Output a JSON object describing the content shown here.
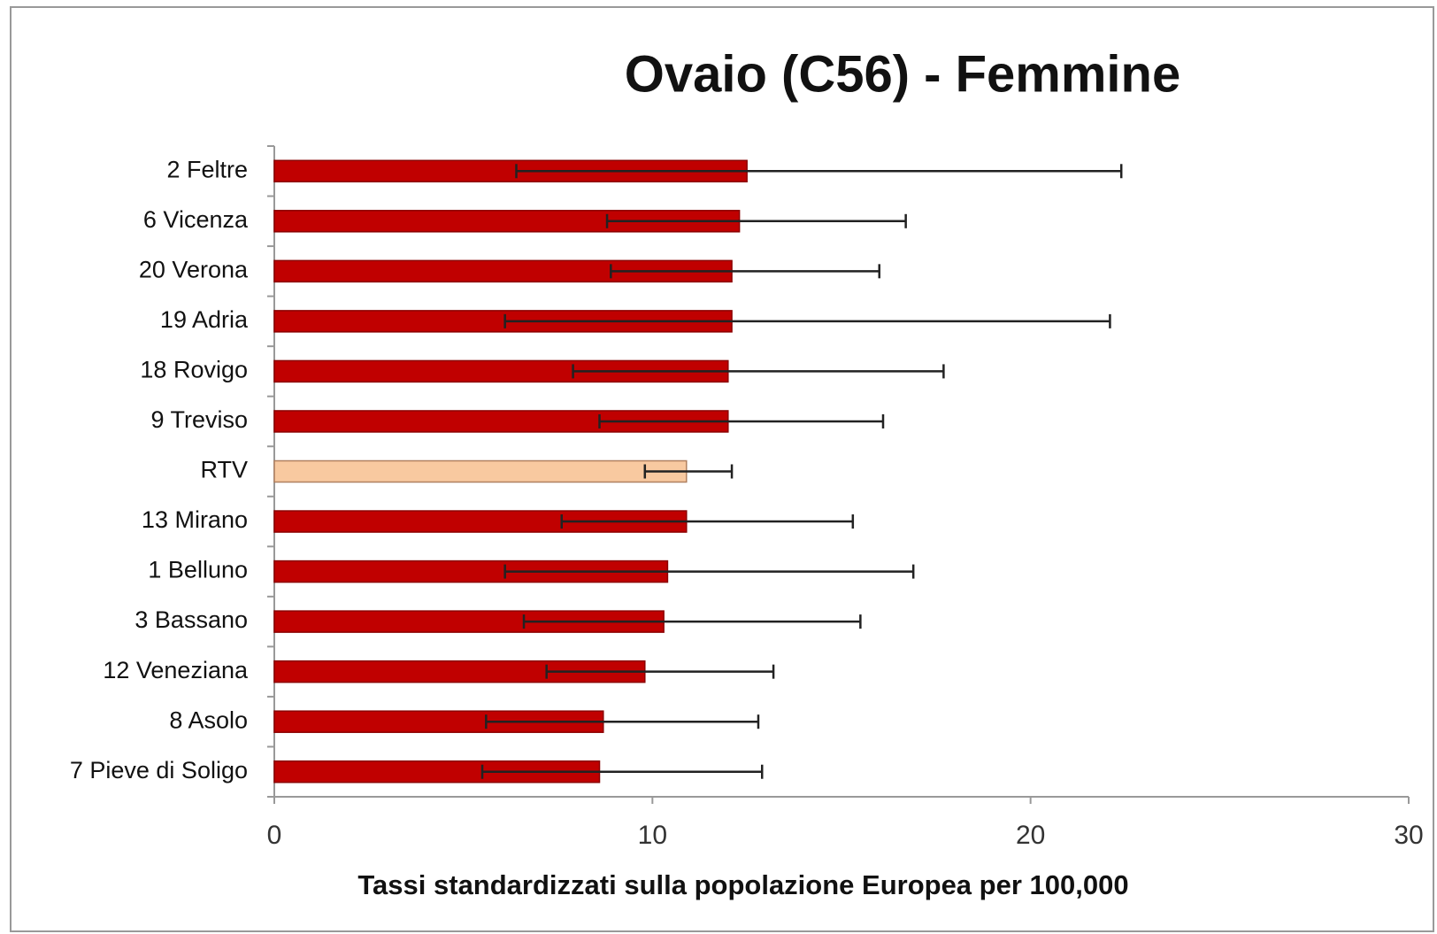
{
  "chart_data": {
    "type": "bar",
    "orientation": "horizontal",
    "title": "Ovaio (C56) - Femmine",
    "x_label": "Tassi standardizzati  sulla popolazione Europea per 100,000",
    "categories": [
      "2 Feltre",
      "6 Vicenza",
      "20 Verona",
      "19 Adria",
      "18 Rovigo",
      "9 Treviso",
      "RTV",
      "13 Mirano",
      "1 Belluno",
      "3 Bassano",
      "12 Veneziana",
      "8 Asolo",
      "7 Pieve di Soligo"
    ],
    "series": [
      {
        "colors": [
          "#c00000",
          "#c00000",
          "#c00000",
          "#c00000",
          "#c00000",
          "#c00000",
          "#f8c9a0",
          "#c00000",
          "#c00000",
          "#c00000",
          "#c00000",
          "#c00000",
          "#c00000"
        ],
        "values": [
          12.5,
          12.3,
          12.1,
          12.1,
          12.0,
          12.0,
          10.9,
          10.9,
          10.4,
          10.3,
          9.8,
          8.7,
          8.6
        ],
        "ci_low": [
          6.4,
          8.8,
          8.9,
          6.1,
          7.9,
          8.6,
          9.8,
          7.6,
          6.1,
          6.6,
          7.2,
          5.6,
          5.5
        ],
        "ci_high": [
          22.4,
          16.7,
          16.0,
          22.1,
          17.7,
          16.1,
          12.1,
          15.3,
          16.9,
          15.5,
          13.2,
          12.8,
          12.9
        ]
      }
    ],
    "xlim": [
      0,
      30
    ],
    "xticks": [
      0,
      10,
      20,
      30
    ]
  }
}
